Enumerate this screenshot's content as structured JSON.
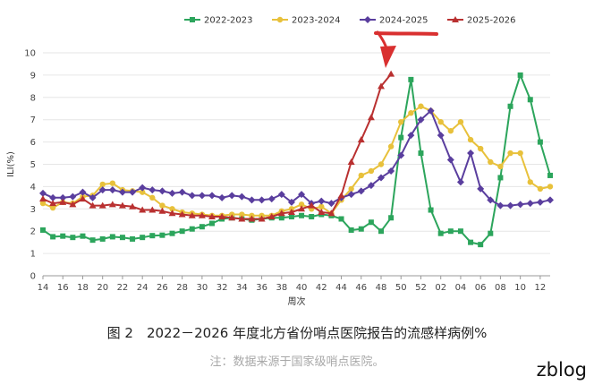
{
  "caption": "图 2　2022－2026 年度北方省份哨点医院报告的流感样病例%",
  "note": "注：数据来源于国家级哨点医院。",
  "watermark": "zblog",
  "chart_data": {
    "type": "line",
    "title": "",
    "xlabel": "周次",
    "ylabel": "ILI(%)",
    "ylim": [
      0,
      10
    ],
    "yticks": [
      0,
      1,
      2,
      3,
      4,
      5,
      6,
      7,
      8,
      9,
      10
    ],
    "xtick_labels": [
      "14",
      "16",
      "18",
      "20",
      "22",
      "24",
      "26",
      "28",
      "30",
      "32",
      "34",
      "36",
      "38",
      "40",
      "42",
      "44",
      "46",
      "48",
      "50",
      "52",
      "02",
      "04",
      "06",
      "08",
      "10",
      "12"
    ],
    "grid": true,
    "legend_position": "top-center",
    "series": [
      {
        "name": "2022-2023",
        "color": "#2ca55c",
        "marker": "square",
        "values": [
          2.05,
          1.75,
          1.78,
          1.72,
          1.78,
          1.6,
          1.65,
          1.75,
          1.72,
          1.65,
          1.72,
          1.8,
          1.82,
          1.9,
          2.0,
          2.1,
          2.2,
          2.35,
          2.55,
          2.6,
          2.55,
          2.5,
          2.55,
          2.6,
          2.6,
          2.65,
          2.7,
          2.65,
          2.75,
          2.7,
          2.55,
          2.05,
          2.1,
          2.4,
          2.0,
          2.6,
          6.2,
          8.8,
          5.5,
          2.95,
          1.9,
          2.0,
          2.0,
          1.5,
          1.4,
          1.9,
          4.4,
          7.6,
          9.0,
          7.9,
          6.0,
          4.5
        ]
      },
      {
        "name": "2023-2024",
        "color": "#e8c13b",
        "marker": "circle",
        "values": [
          3.25,
          3.05,
          3.3,
          3.25,
          3.55,
          3.6,
          4.1,
          4.15,
          3.85,
          3.8,
          3.75,
          3.5,
          3.15,
          3.0,
          2.85,
          2.8,
          2.75,
          2.7,
          2.7,
          2.75,
          2.75,
          2.7,
          2.7,
          2.7,
          2.9,
          3.0,
          3.2,
          3.0,
          3.1,
          2.8,
          3.4,
          3.9,
          4.5,
          4.7,
          5.0,
          5.8,
          6.9,
          7.3,
          7.6,
          7.4,
          6.9,
          6.5,
          6.9,
          6.1,
          5.7,
          5.1,
          4.9,
          5.5,
          5.5,
          4.2,
          3.9,
          4.0
        ]
      },
      {
        "name": "2024-2025",
        "color": "#5a3e9e",
        "marker": "diamond",
        "values": [
          3.7,
          3.5,
          3.5,
          3.55,
          3.75,
          3.5,
          3.85,
          3.85,
          3.75,
          3.75,
          3.95,
          3.85,
          3.8,
          3.7,
          3.75,
          3.6,
          3.6,
          3.6,
          3.5,
          3.6,
          3.55,
          3.4,
          3.4,
          3.45,
          3.65,
          3.3,
          3.65,
          3.25,
          3.35,
          3.25,
          3.5,
          3.65,
          3.8,
          4.05,
          4.4,
          4.7,
          5.4,
          6.3,
          7.0,
          7.4,
          6.3,
          5.2,
          4.2,
          5.5,
          3.9,
          3.4,
          3.15,
          3.15,
          3.2,
          3.25,
          3.3,
          3.4
        ]
      },
      {
        "name": "2025-2026",
        "color": "#b93030",
        "marker": "triangle",
        "values": [
          3.45,
          3.25,
          3.3,
          3.2,
          3.45,
          3.15,
          3.15,
          3.2,
          3.15,
          3.1,
          2.95,
          2.95,
          2.9,
          2.8,
          2.75,
          2.7,
          2.7,
          2.65,
          2.65,
          2.6,
          2.55,
          2.55,
          2.55,
          2.65,
          2.8,
          2.85,
          3.0,
          3.15,
          2.85,
          2.8,
          3.6,
          5.1,
          6.1,
          7.1,
          8.5,
          9.05
        ]
      }
    ]
  }
}
